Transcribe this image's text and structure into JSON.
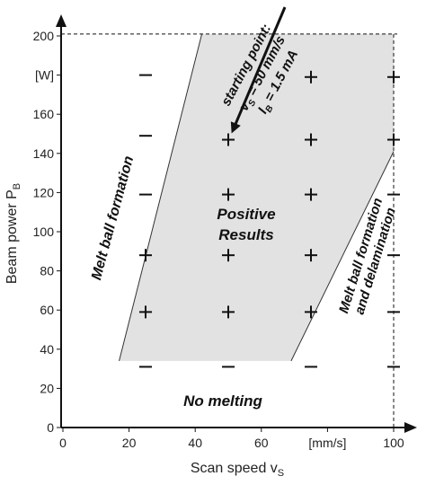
{
  "chart_data": {
    "type": "scatter",
    "xlabel": "Scan speed v",
    "xlabel_sub": "S",
    "ylabel": "Beam power P",
    "ylabel_sub": "B",
    "xlim": [
      0,
      106
    ],
    "ylim": [
      0,
      210
    ],
    "x_ticks": [
      "0",
      "20",
      "40",
      "60",
      "[mm/s]",
      "100"
    ],
    "x_tick_values": [
      0,
      20,
      40,
      60,
      80,
      100
    ],
    "y_ticks": [
      "0",
      "20",
      "40",
      "60",
      "80",
      "100",
      "120",
      "140",
      "160",
      "[W]",
      "200"
    ],
    "y_tick_values": [
      0,
      20,
      40,
      60,
      80,
      100,
      120,
      140,
      160,
      180,
      200
    ],
    "limits": {
      "x_max": 100,
      "y_max": 201
    },
    "positive_region": [
      [
        17,
        34
      ],
      [
        42,
        201
      ],
      [
        100,
        201
      ],
      [
        100,
        141
      ],
      [
        69,
        34
      ]
    ],
    "region_labels": {
      "positive": [
        "Positive",
        "Results"
      ],
      "melt_ball": "Melt ball formation",
      "melt_ball_delam": [
        "Melt ball formation",
        "and delamination"
      ],
      "no_melting": "No melting"
    },
    "starting_point": {
      "line1": "starting point:",
      "line2": "v",
      "line2_sub": "S",
      "line2_rest": " = 50 mm/s",
      "line3": "I",
      "line3_sub": "B",
      "line3_rest": " = 1.5 mA"
    },
    "points": [
      {
        "x": 25,
        "y": 180,
        "s": "-"
      },
      {
        "x": 25,
        "y": 149,
        "s": "-"
      },
      {
        "x": 25,
        "y": 119,
        "s": "-"
      },
      {
        "x": 25,
        "y": 88,
        "s": "+"
      },
      {
        "x": 25,
        "y": 59,
        "s": "+"
      },
      {
        "x": 25,
        "y": 31,
        "s": "-"
      },
      {
        "x": 50,
        "y": 147,
        "s": "+"
      },
      {
        "x": 50,
        "y": 119,
        "s": "+"
      },
      {
        "x": 50,
        "y": 88,
        "s": "+"
      },
      {
        "x": 50,
        "y": 59,
        "s": "+"
      },
      {
        "x": 50,
        "y": 31,
        "s": "-"
      },
      {
        "x": 75,
        "y": 179,
        "s": "+"
      },
      {
        "x": 75,
        "y": 147,
        "s": "+"
      },
      {
        "x": 75,
        "y": 119,
        "s": "+"
      },
      {
        "x": 75,
        "y": 88,
        "s": "+"
      },
      {
        "x": 75,
        "y": 59,
        "s": "+"
      },
      {
        "x": 75,
        "y": 31,
        "s": "-"
      },
      {
        "x": 100,
        "y": 179,
        "s": "+"
      },
      {
        "x": 100,
        "y": 147,
        "s": "+"
      },
      {
        "x": 100,
        "y": 119,
        "s": "-"
      },
      {
        "x": 100,
        "y": 88,
        "s": "-"
      },
      {
        "x": 100,
        "y": 59,
        "s": "-"
      },
      {
        "x": 100,
        "y": 31,
        "s": "-"
      }
    ],
    "grid": false,
    "colors": {
      "region_fill": "#e2e2e2",
      "ink": "#111111"
    }
  }
}
